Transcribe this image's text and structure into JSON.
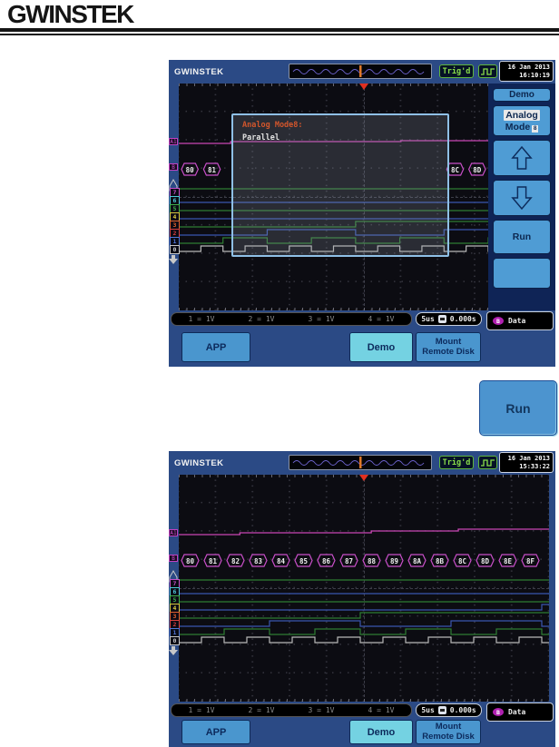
{
  "logo": "GWINSTEK",
  "run_button": {
    "label": "Run"
  },
  "colors": {
    "analog_trace": "#c846b4",
    "bus": "#c84fc8",
    "trigger_marker": "#e03020",
    "header_blue": "#2b4a85",
    "button_blue": "#4a96ce",
    "button_cyan": "#74d2e2",
    "trig_green": "#8ade4a"
  },
  "shared": {
    "status": {
      "channels": [
        {
          "n": "1",
          "sep": "=",
          "v": "1V"
        },
        {
          "n": "2",
          "sep": "=",
          "v": "1V"
        },
        {
          "n": "3",
          "sep": "=",
          "v": "1V"
        },
        {
          "n": "4",
          "sep": "=",
          "v": "1V"
        }
      ],
      "timebase": "5us",
      "h_position": "0.000s",
      "bus_label": "B",
      "bus_text": "Data"
    },
    "bottom_buttons": [
      {
        "label_lines": [
          "APP"
        ],
        "color": "#4a96ce"
      },
      {
        "label_lines": [
          "Demo"
        ],
        "color": "#74d2e2"
      },
      {
        "label_lines": [
          "Mount",
          "Remote Disk"
        ],
        "color": "#4a96ce"
      }
    ],
    "digital_channels": [
      {
        "label": "7",
        "label_color": "#c84fc8",
        "wave_color": "#2e7d32",
        "bits": "11111111111111111"
      },
      {
        "label": "6",
        "label_color": "#4fc8d8",
        "wave_color": "#3a56b0",
        "bits": "00000000000000000"
      },
      {
        "label": "5",
        "label_color": "#3fae4a",
        "wave_color": "#2e7d32",
        "bits": "00000000000000000"
      },
      {
        "label": "4",
        "label_color": "#d8c83f",
        "wave_color": "#3a56b0",
        "bits": "00000000000000001"
      },
      {
        "label": "3",
        "label_color": "#e06030",
        "wave_color": "#2e7d32",
        "bits": "00000000111111111"
      },
      {
        "label": "2",
        "label_color": "#d84040",
        "wave_color": "#3a56b0",
        "bits": "00001111000011110"
      },
      {
        "label": "1",
        "label_color": "#5077d8",
        "wave_color": "#2e7d32",
        "bits": "00110011001100110"
      },
      {
        "label": "0",
        "label_color": "#c8c8c8",
        "wave_color": "#b8b8b8",
        "bits": "01010101010101010"
      }
    ]
  },
  "scopes": [
    {
      "header": {
        "brand": "GWINSTEK",
        "trig": "Trig'd",
        "date": "16 Jan 2013",
        "time": "16:10:19"
      },
      "analog_label": "A1",
      "bus": {
        "label": "B",
        "segment_count": 14,
        "span": 341,
        "segments": [
          {
            "i": 0,
            "t": "80"
          },
          {
            "i": 1,
            "t": "81"
          },
          {
            "i": 12,
            "t": "8C"
          },
          {
            "i": 13,
            "t": "8D"
          }
        ]
      },
      "analog_steps": [
        [
          0,
          0
        ],
        [
          0.14,
          2
        ],
        [
          0.6,
          3
        ]
      ],
      "dialog": {
        "title": "Analog Mode8:",
        "body": "Parallel"
      },
      "menu": [
        {
          "type": "label",
          "label": "Demo"
        },
        {
          "type": "analog",
          "line1": "Analog",
          "line2": "Mode",
          "badge": "8"
        },
        {
          "type": "icon",
          "icon": "arrow-up-icon"
        },
        {
          "type": "icon",
          "icon": "arrow-down-icon"
        },
        {
          "type": "label",
          "label": "Run"
        },
        {
          "type": "blank"
        }
      ]
    },
    {
      "header": {
        "brand": "GWINSTEK",
        "trig": "Trig'd",
        "date": "16 Jan 2013",
        "time": "15:33:22"
      },
      "analog_label": "A1",
      "bus": {
        "label": "B",
        "segment_count": 16,
        "span": 400,
        "segments": [
          {
            "i": 0,
            "t": "80"
          },
          {
            "i": 1,
            "t": "81"
          },
          {
            "i": 2,
            "t": "82"
          },
          {
            "i": 3,
            "t": "83"
          },
          {
            "i": 4,
            "t": "84"
          },
          {
            "i": 5,
            "t": "85"
          },
          {
            "i": 6,
            "t": "86"
          },
          {
            "i": 7,
            "t": "87"
          },
          {
            "i": 8,
            "t": "88"
          },
          {
            "i": 9,
            "t": "89"
          },
          {
            "i": 10,
            "t": "8A"
          },
          {
            "i": 11,
            "t": "8B"
          },
          {
            "i": 12,
            "t": "8C"
          },
          {
            "i": 13,
            "t": "8D"
          },
          {
            "i": 14,
            "t": "8E"
          },
          {
            "i": 15,
            "t": "8F"
          }
        ]
      },
      "analog_steps": [
        [
          0,
          0
        ],
        [
          0.165,
          2
        ],
        [
          0.52,
          4
        ],
        [
          0.755,
          6
        ]
      ]
    }
  ]
}
